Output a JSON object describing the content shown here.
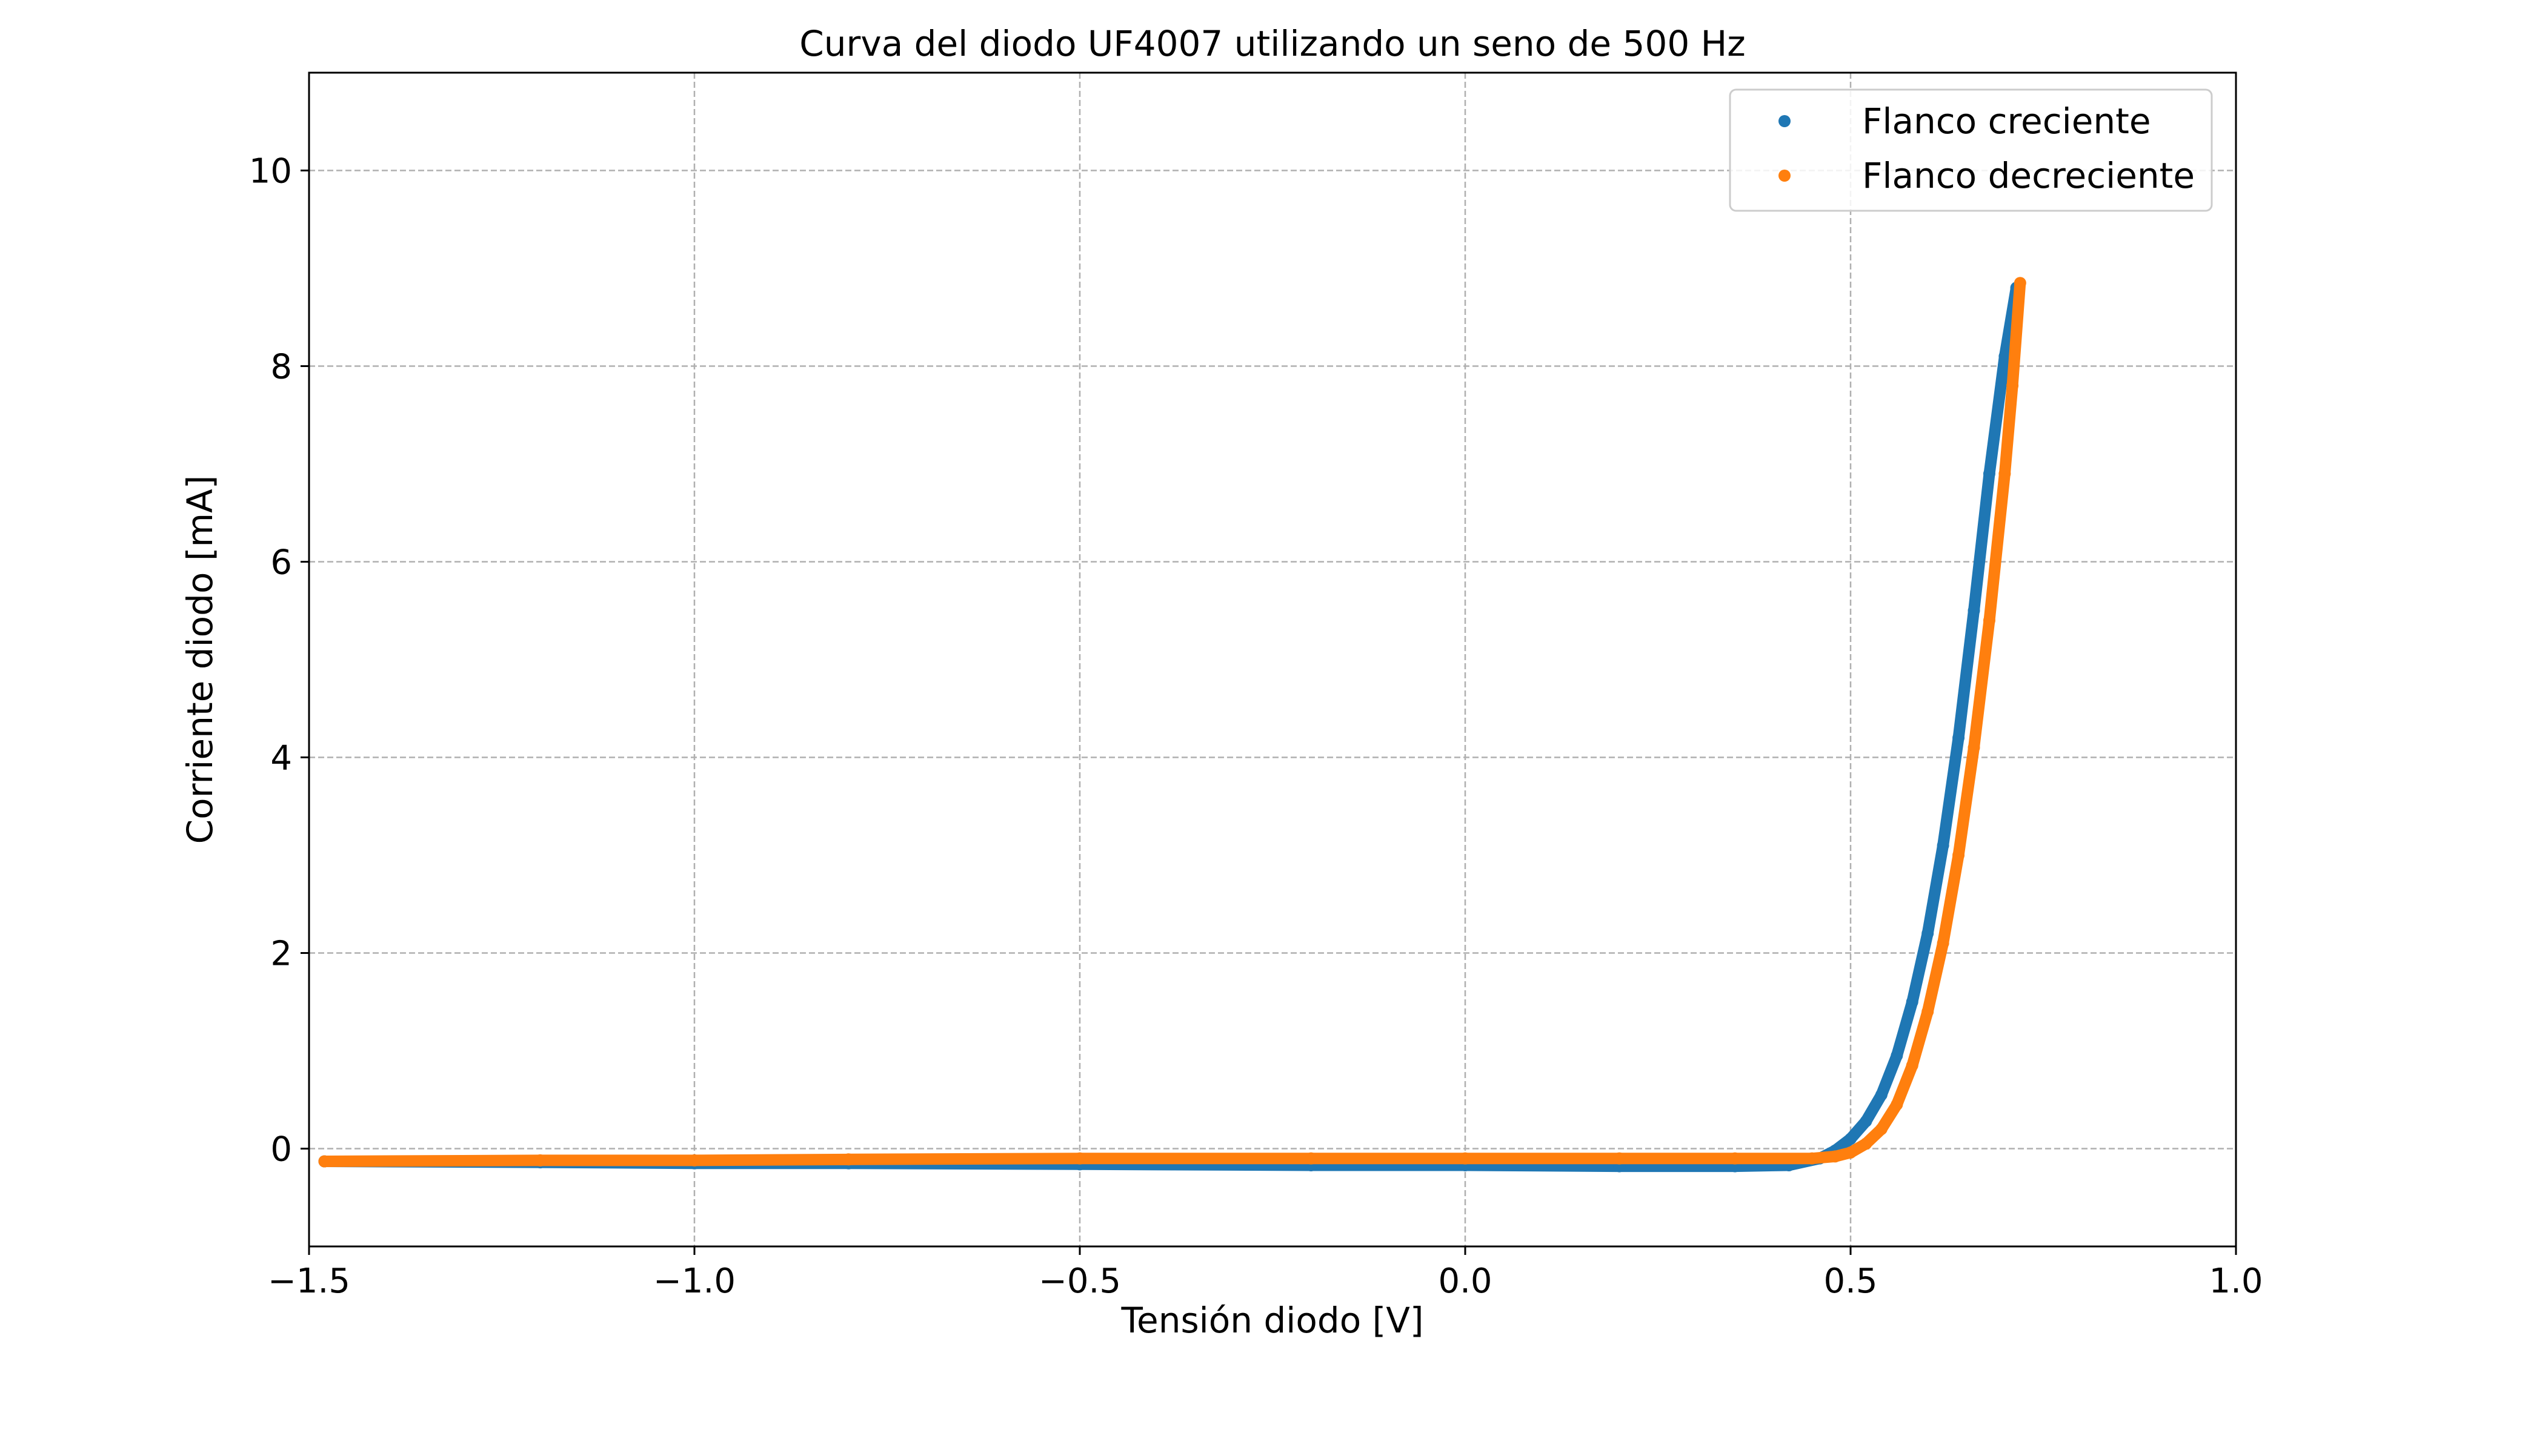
{
  "chart_data": {
    "type": "scatter",
    "title": "Curva del diodo UF4007 utilizando un seno de 500 Hz",
    "xlabel": "Tensión diodo [V]",
    "ylabel": "Corriente diodo [mA]",
    "xlim": [
      -1.5,
      1.0
    ],
    "ylim": [
      -1.0,
      11.0
    ],
    "x_ticks": [
      -1.5,
      -1.0,
      -0.5,
      0.0,
      0.5,
      1.0
    ],
    "x_tick_labels": [
      "−1.5",
      "−1.0",
      "−0.5",
      "0.0",
      "0.5",
      "1.0"
    ],
    "y_ticks": [
      0,
      2,
      4,
      6,
      8,
      10
    ],
    "y_tick_labels": [
      "0",
      "2",
      "4",
      "6",
      "8",
      "10"
    ],
    "grid": true,
    "legend_position": "upper right",
    "series": [
      {
        "name": "Flanco creciente",
        "color": "#1f77b4",
        "x": [
          -1.48,
          -1.2,
          -1.0,
          -0.8,
          -0.5,
          -0.2,
          0.0,
          0.2,
          0.35,
          0.42,
          0.46,
          0.48,
          0.5,
          0.52,
          0.54,
          0.56,
          0.58,
          0.6,
          0.62,
          0.64,
          0.66,
          0.68,
          0.7,
          0.715
        ],
        "y": [
          -0.13,
          -0.14,
          -0.15,
          -0.15,
          -0.16,
          -0.17,
          -0.17,
          -0.18,
          -0.18,
          -0.17,
          -0.1,
          -0.02,
          0.1,
          0.28,
          0.55,
          0.95,
          1.5,
          2.2,
          3.1,
          4.2,
          5.5,
          6.9,
          8.1,
          8.8
        ]
      },
      {
        "name": "Flanco decreciente",
        "color": "#ff7f0e",
        "x": [
          -1.48,
          -1.2,
          -1.0,
          -0.8,
          -0.5,
          -0.2,
          0.0,
          0.2,
          0.35,
          0.45,
          0.48,
          0.5,
          0.52,
          0.54,
          0.56,
          0.58,
          0.6,
          0.62,
          0.64,
          0.66,
          0.68,
          0.7,
          0.71,
          0.72
        ],
        "y": [
          -0.13,
          -0.12,
          -0.12,
          -0.11,
          -0.1,
          -0.1,
          -0.1,
          -0.1,
          -0.1,
          -0.1,
          -0.08,
          -0.04,
          0.05,
          0.2,
          0.45,
          0.85,
          1.4,
          2.1,
          3.0,
          4.1,
          5.4,
          6.9,
          7.8,
          8.85
        ]
      }
    ]
  }
}
